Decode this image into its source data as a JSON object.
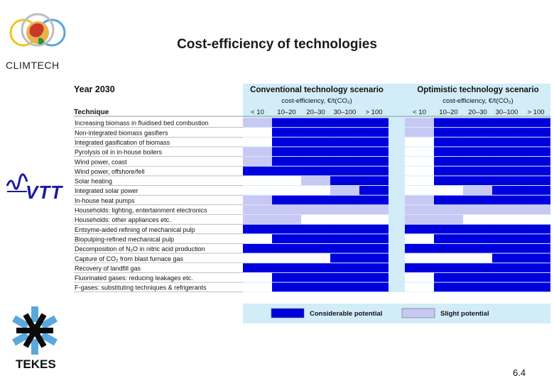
{
  "header": {
    "title": "Cost-efficiency of technologies",
    "page_number": "6.4",
    "logo_climtech": "CLIMTECH",
    "logo_vtt": "VTT",
    "logo_tekes": "TEKES"
  },
  "chart_data": {
    "type": "table",
    "year_label": "Year 2030",
    "technique_header": "Technique",
    "scenarios": [
      {
        "title": "Conventional technology scenario",
        "subtitle": "cost-efficiency, €/t(CO₂)"
      },
      {
        "title": "Optimistic technology scenario",
        "subtitle": "cost-efficiency, €/t(CO₂)"
      }
    ],
    "cost_categories": [
      "< 10",
      "10–20",
      "20–30",
      "30–100",
      "> 100"
    ],
    "legend": [
      {
        "key": "C",
        "label": "Considerable potential",
        "color": "#0000dd"
      },
      {
        "key": "S",
        "label": "Slight potential",
        "color": "#c8c8f4"
      }
    ],
    "colors": {
      "considerable": "#0000dd",
      "slight": "#c8c8f4",
      "band": "#d2ecf8",
      "none": "#ffffff"
    },
    "rows": [
      {
        "technique": "Increasing biomass in fluidised bed combustion",
        "conventional": [
          "S",
          "C",
          "C",
          "C",
          "C"
        ],
        "optimistic": [
          "S",
          "C",
          "C",
          "C",
          "C"
        ]
      },
      {
        "technique": "Non-integrated biomass gasifiers",
        "conventional": [
          "",
          "C",
          "C",
          "C",
          "C"
        ],
        "optimistic": [
          "S",
          "C",
          "C",
          "C",
          "C"
        ]
      },
      {
        "technique": "Integrated gasification of biomass",
        "conventional": [
          "",
          "C",
          "C",
          "C",
          "C"
        ],
        "optimistic": [
          "",
          "C",
          "C",
          "C",
          "C"
        ]
      },
      {
        "technique": "Pyrolysis oil in in-house boilers",
        "conventional": [
          "S",
          "C",
          "C",
          "C",
          "C"
        ],
        "optimistic": [
          "",
          "C",
          "C",
          "C",
          "C"
        ]
      },
      {
        "technique": "Wind power, coast",
        "conventional": [
          "S",
          "C",
          "C",
          "C",
          "C"
        ],
        "optimistic": [
          "",
          "C",
          "C",
          "C",
          "C"
        ]
      },
      {
        "technique": "Wind power, offshore/fell",
        "conventional": [
          "C",
          "C",
          "C",
          "C",
          "C"
        ],
        "optimistic": [
          "",
          "C",
          "C",
          "C",
          "C"
        ]
      },
      {
        "technique": "Solar heating",
        "conventional": [
          "",
          "",
          "S",
          "C",
          "C"
        ],
        "optimistic": [
          "",
          "C",
          "C",
          "C",
          "C"
        ]
      },
      {
        "technique": "Integrated solar power",
        "conventional": [
          "",
          "",
          "",
          "S",
          "C"
        ],
        "optimistic": [
          "",
          "",
          "S",
          "C",
          "C"
        ]
      },
      {
        "technique": "In-house heat pumps",
        "conventional": [
          "S",
          "C",
          "C",
          "C",
          "C"
        ],
        "optimistic": [
          "S",
          "C",
          "C",
          "C",
          "C"
        ]
      },
      {
        "technique": "Households: lighting, entertainment electronics",
        "conventional": [
          "S",
          "S",
          "S",
          "S",
          "S"
        ],
        "optimistic": [
          "S",
          "S",
          "S",
          "S",
          "S"
        ]
      },
      {
        "technique": "Households: other appliances etc.",
        "conventional": [
          "S",
          "S",
          "",
          "",
          ""
        ],
        "optimistic": [
          "S",
          "S",
          "",
          "",
          ""
        ]
      },
      {
        "technique": "Entsyme-aided refining of mechanical pulp",
        "conventional": [
          "C",
          "C",
          "C",
          "C",
          "C"
        ],
        "optimistic": [
          "C",
          "C",
          "C",
          "C",
          "C"
        ]
      },
      {
        "technique": "Biopulping-refined mechanical pulp",
        "conventional": [
          "",
          "C",
          "C",
          "C",
          "C"
        ],
        "optimistic": [
          "",
          "C",
          "C",
          "C",
          "C"
        ]
      },
      {
        "technique": "Decomposition of N₂O in nitric acid production",
        "conventional": [
          "C",
          "C",
          "C",
          "C",
          "C"
        ],
        "optimistic": [
          "C",
          "C",
          "C",
          "C",
          "C"
        ]
      },
      {
        "technique": "Capture of CO₂ from blast furnace gas",
        "conventional": [
          "",
          "",
          "",
          "C",
          "C"
        ],
        "optimistic": [
          "",
          "",
          "",
          "C",
          "C"
        ]
      },
      {
        "technique": "Recovery of landfill gas",
        "conventional": [
          "C",
          "C",
          "C",
          "C",
          "C"
        ],
        "optimistic": [
          "C",
          "C",
          "C",
          "C",
          "C"
        ]
      },
      {
        "technique": "Fluorinated gases: reducing leakages etc.",
        "conventional": [
          "",
          "C",
          "C",
          "C",
          "C"
        ],
        "optimistic": [
          "",
          "C",
          "C",
          "C",
          "C"
        ]
      },
      {
        "technique": "F-gases: substituting techniques & refrigerants",
        "conventional": [
          "",
          "C",
          "C",
          "C",
          "C"
        ],
        "optimistic": [
          "",
          "C",
          "C",
          "C",
          "C"
        ]
      }
    ]
  }
}
